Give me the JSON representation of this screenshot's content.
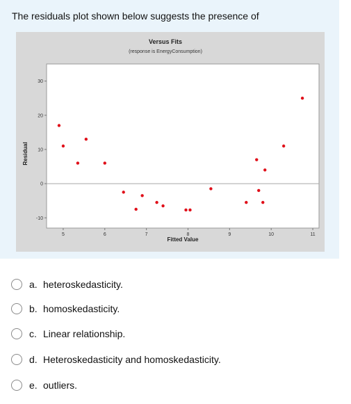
{
  "question": {
    "text": "The residuals plot shown below suggests the presence of"
  },
  "chart_data": {
    "type": "scatter",
    "title": "Versus Fits",
    "subtitle": "(response is EnergyConsumption)",
    "xlabel": "Fitted Value",
    "ylabel": "Residual",
    "xlim": [
      4.6,
      11.15
    ],
    "ylim": [
      -13,
      35
    ],
    "x_ticks": [
      5,
      6,
      7,
      8,
      9,
      10,
      11
    ],
    "y_ticks": [
      -10,
      0,
      10,
      20,
      30
    ],
    "reference_line_y": 0,
    "grid": false,
    "marker_color": "#e0101a",
    "points": [
      {
        "x": 4.9,
        "y": 17
      },
      {
        "x": 5.0,
        "y": 11
      },
      {
        "x": 5.35,
        "y": 6
      },
      {
        "x": 5.55,
        "y": 13
      },
      {
        "x": 6.0,
        "y": 6
      },
      {
        "x": 6.45,
        "y": -2.5
      },
      {
        "x": 6.75,
        "y": -7.5
      },
      {
        "x": 6.9,
        "y": -3.5
      },
      {
        "x": 7.25,
        "y": -5.5
      },
      {
        "x": 7.4,
        "y": -6.5
      },
      {
        "x": 7.95,
        "y": -7.7
      },
      {
        "x": 8.05,
        "y": -7.7
      },
      {
        "x": 8.55,
        "y": -1.5
      },
      {
        "x": 9.4,
        "y": -5.5
      },
      {
        "x": 9.65,
        "y": 7
      },
      {
        "x": 9.7,
        "y": -2
      },
      {
        "x": 9.8,
        "y": -5.5
      },
      {
        "x": 9.85,
        "y": 4
      },
      {
        "x": 10.3,
        "y": 11
      },
      {
        "x": 10.75,
        "y": 25
      }
    ]
  },
  "options": [
    {
      "letter": "a.",
      "text": "heteroskedasticity."
    },
    {
      "letter": "b.",
      "text": "homoskedasticity."
    },
    {
      "letter": "c.",
      "text": "Linear relationship."
    },
    {
      "letter": "d.",
      "text": "Heteroskedasticity and homoskedasticity."
    },
    {
      "letter": "e.",
      "text": "outliers."
    }
  ]
}
